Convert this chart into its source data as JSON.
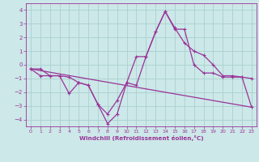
{
  "xlabel": "Windchill (Refroidissement éolien,°C)",
  "background_color": "#cce8e8",
  "grid_color": "#aad0d0",
  "line_color": "#993399",
  "xlim": [
    -0.5,
    23.5
  ],
  "ylim": [
    -4.5,
    4.5
  ],
  "yticks": [
    -4,
    -3,
    -2,
    -1,
    0,
    1,
    2,
    3,
    4
  ],
  "xticks": [
    0,
    1,
    2,
    3,
    4,
    5,
    6,
    7,
    8,
    9,
    10,
    11,
    12,
    13,
    14,
    15,
    16,
    17,
    18,
    19,
    20,
    21,
    22,
    23
  ],
  "line1_x": [
    0,
    1,
    2,
    3,
    4,
    5,
    6,
    7,
    8,
    9,
    10,
    11,
    12,
    13,
    14,
    15,
    16,
    17,
    18,
    19,
    20,
    21,
    22,
    23
  ],
  "line1_y": [
    -0.3,
    -0.8,
    -0.8,
    -0.8,
    -0.9,
    -1.3,
    -1.5,
    -2.9,
    -4.3,
    -3.6,
    -1.3,
    -1.5,
    0.6,
    2.4,
    3.9,
    2.7,
    1.6,
    1.0,
    0.7,
    0.0,
    -0.8,
    -0.8,
    -0.9,
    -1.0
  ],
  "line2_x": [
    0,
    1,
    2,
    3,
    4,
    5,
    6,
    7,
    8,
    9,
    10,
    11,
    12,
    13,
    14,
    15,
    16,
    17,
    18,
    19,
    20,
    21,
    22,
    23
  ],
  "line2_y": [
    -0.3,
    -0.3,
    -0.8,
    -0.8,
    -2.1,
    -1.3,
    -1.5,
    -2.9,
    -3.6,
    -2.6,
    -1.3,
    0.6,
    0.6,
    2.4,
    3.9,
    2.6,
    2.6,
    0.0,
    -0.6,
    -0.6,
    -0.9,
    -0.9,
    -0.9,
    -3.1
  ],
  "line3_x": [
    0,
    23
  ],
  "line3_y": [
    -0.3,
    -3.1
  ]
}
